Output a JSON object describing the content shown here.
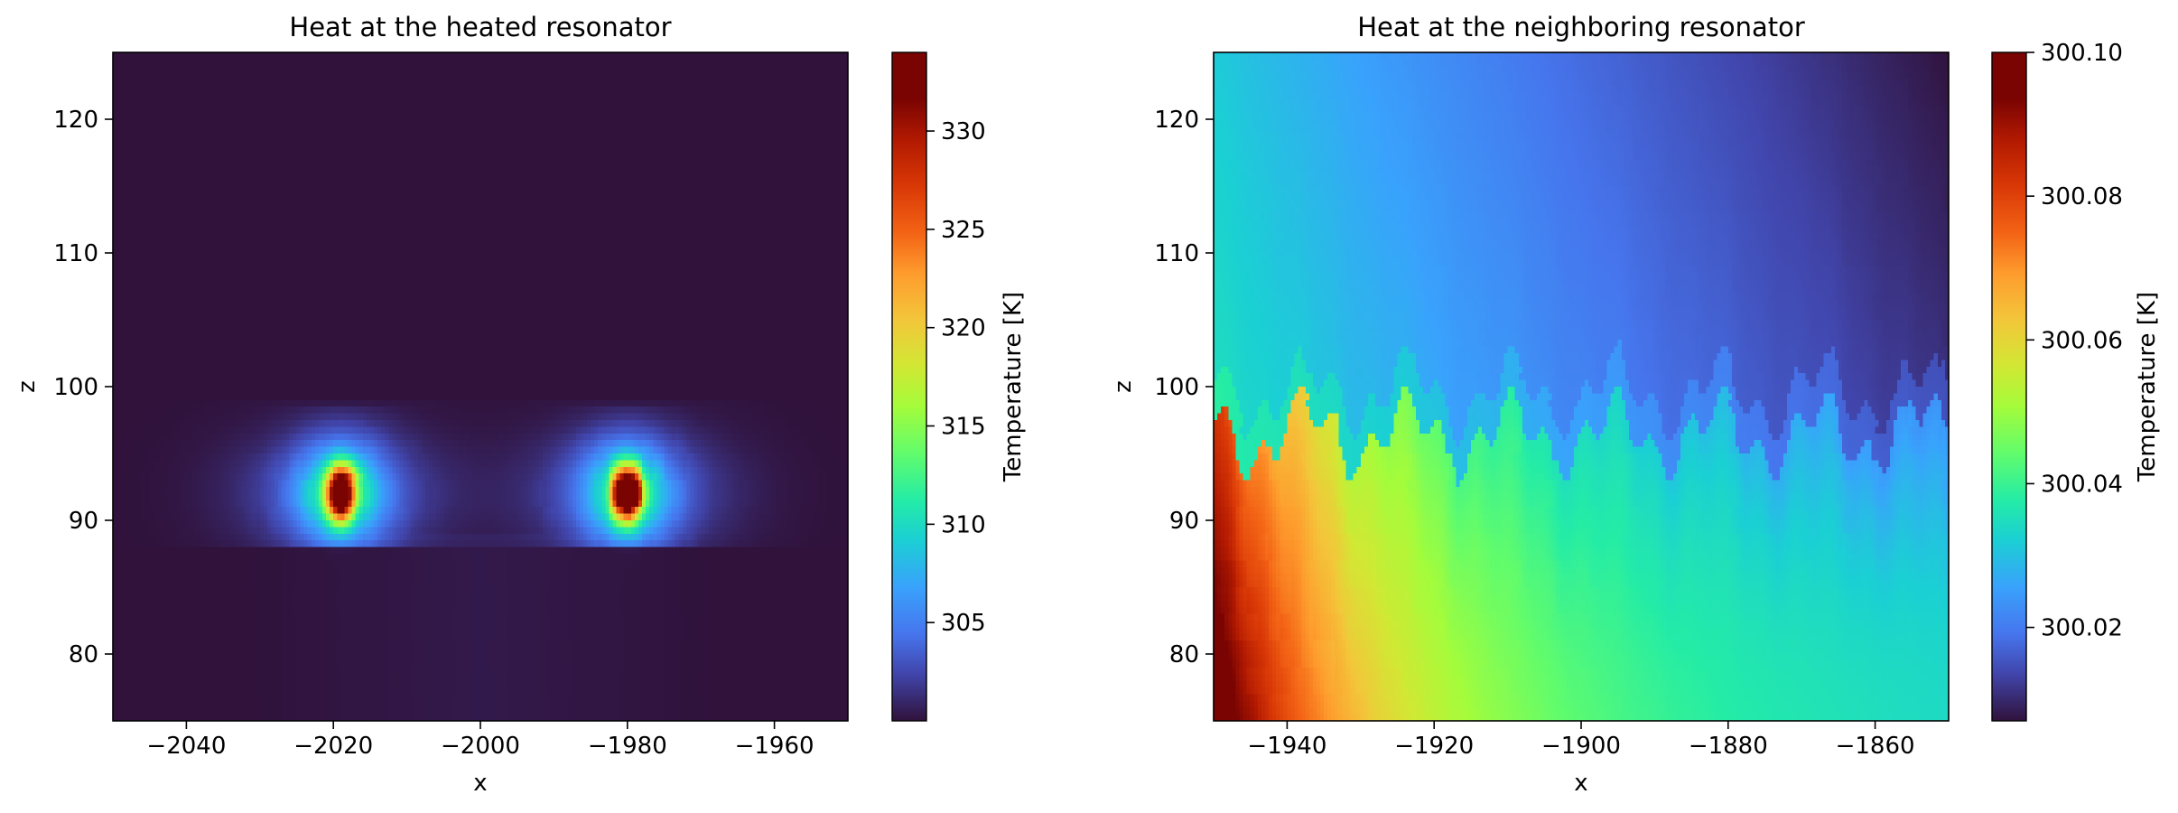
{
  "chart_data": [
    {
      "type": "heatmap",
      "title": "Heat at the heated resonator",
      "xlabel": "x",
      "ylabel": "z",
      "xlim": [
        -2050,
        -1950
      ],
      "ylim": [
        75,
        125
      ],
      "xticks": [
        -2040,
        -2020,
        -2000,
        -1980,
        -1960
      ],
      "yticks": [
        80,
        90,
        100,
        110,
        120
      ],
      "xtick_labels": [
        "−2040",
        "−2020",
        "−2000",
        "−1980",
        "−1960"
      ],
      "ytick_labels": [
        "80",
        "90",
        "100",
        "110",
        "120"
      ],
      "colormap": "turbo",
      "colorbar": {
        "label": "Temperature [K]",
        "range": [
          300,
          334
        ],
        "ticks": [
          305,
          310,
          315,
          320,
          325,
          330
        ],
        "tick_labels": [
          "305",
          "310",
          "315",
          "320",
          "325",
          "330"
        ]
      },
      "background_temperature": 300,
      "hotspots": [
        {
          "x": -2019,
          "z": 92,
          "peak": 334
        },
        {
          "x": -1980,
          "z": 92,
          "peak": 334
        }
      ]
    },
    {
      "type": "heatmap",
      "title": "Heat at the neighboring resonator",
      "xlabel": "x",
      "ylabel": "z",
      "xlim": [
        -1950,
        -1850
      ],
      "ylim": [
        75,
        125
      ],
      "xticks": [
        -1940,
        -1920,
        -1900,
        -1880,
        -1860
      ],
      "yticks": [
        80,
        90,
        100,
        110,
        120
      ],
      "xtick_labels": [
        "−1940",
        "−1920",
        "−1900",
        "−1880",
        "−1860"
      ],
      "ytick_labels": [
        "80",
        "90",
        "100",
        "110",
        "120"
      ],
      "colormap": "turbo",
      "colorbar": {
        "label": "Temperature [K]",
        "range": [
          300.007,
          300.1
        ],
        "ticks": [
          300.02,
          300.04,
          300.06,
          300.08,
          300.1
        ],
        "tick_labels": [
          "300.02",
          "300.04",
          "300.06",
          "300.08",
          "300.10"
        ]
      },
      "gradient_samples": [
        {
          "x": -1950,
          "z": 80,
          "t": 300.085
        },
        {
          "x": -1930,
          "z": 85,
          "t": 300.06
        },
        {
          "x": -1900,
          "z": 85,
          "t": 300.045
        },
        {
          "x": -1860,
          "z": 85,
          "t": 300.03
        },
        {
          "x": -1950,
          "z": 120,
          "t": 300.03
        },
        {
          "x": -1900,
          "z": 115,
          "t": 300.015
        },
        {
          "x": -1860,
          "z": 110,
          "t": 300.008
        }
      ]
    }
  ]
}
